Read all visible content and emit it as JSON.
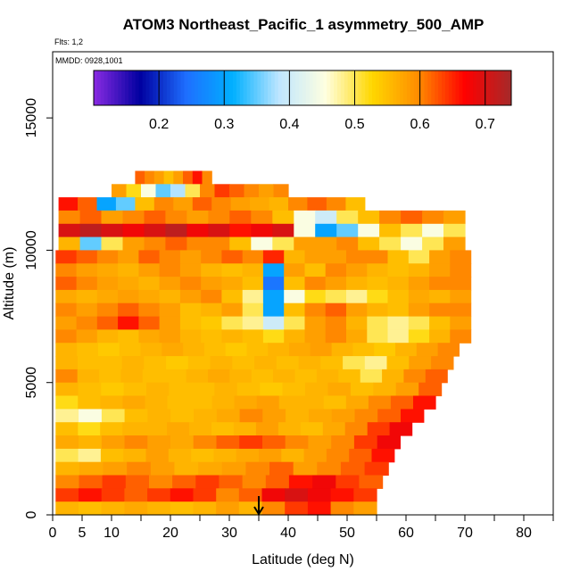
{
  "title": "ATOM3 Northeast_Pacific_1 asymmetry_500_AMP",
  "flights_label": "Flts: 1,2",
  "dates_label": "MMDD: 0928,1001",
  "chart_data": {
    "type": "heatmap",
    "title": "ATOM3 Northeast_Pacific_1 asymmetry_500_AMP",
    "xlabel": "Latitude (deg N)",
    "ylabel": "Altitude (m)",
    "xlim": [
      0,
      85
    ],
    "ylim": [
      0,
      17500
    ],
    "x_ticks": [
      0,
      5,
      10,
      20,
      30,
      40,
      50,
      60,
      70,
      80
    ],
    "x_minor_ticks": [
      15,
      25,
      35,
      45,
      55,
      65,
      75,
      85
    ],
    "y_ticks": [
      0,
      5000,
      10000,
      15000
    ],
    "colorbar": {
      "range": [
        0.1,
        0.74
      ],
      "ticks": [
        0.2,
        0.3,
        0.4,
        0.5,
        0.6,
        0.7
      ],
      "colors": [
        "#8a2be2",
        "#0000a0",
        "#1e6fff",
        "#00b0ff",
        "#bfe6ff",
        "#ffffe0",
        "#ffd700",
        "#ff8c00",
        "#ff0000",
        "#a52a2a"
      ]
    },
    "marker_latitude": 35,
    "grid": false,
    "rows": [
      {
        "alt": 12500,
        "lat_start": 14,
        "lat_end": 27,
        "values": [
          0.62,
          0.6,
          0.58,
          0.55,
          0.58,
          0.62,
          0.66,
          0.6
        ]
      },
      {
        "alt": 12000,
        "lat_start": 10,
        "lat_end": 40,
        "values": [
          0.58,
          0.52,
          0.45,
          0.35,
          0.38,
          0.5,
          0.6,
          0.64,
          0.62,
          0.6,
          0.58,
          0.6
        ]
      },
      {
        "alt": 11500,
        "lat_start": 1,
        "lat_end": 53,
        "values": [
          0.66,
          0.62,
          0.3,
          0.35,
          0.55,
          0.6,
          0.58,
          0.62,
          0.6,
          0.58,
          0.57,
          0.56,
          0.6,
          0.62,
          0.6,
          0.55
        ]
      },
      {
        "alt": 11000,
        "lat_start": 1,
        "lat_end": 70,
        "values": [
          0.6,
          0.62,
          0.58,
          0.6,
          0.62,
          0.6,
          0.58,
          0.6,
          0.62,
          0.6,
          0.55,
          0.45,
          0.4,
          0.5,
          0.55,
          0.6,
          0.62,
          0.6,
          0.58
        ]
      },
      {
        "alt": 10500,
        "lat_start": 1,
        "lat_end": 70,
        "values": [
          0.7,
          0.72,
          0.7,
          0.68,
          0.7,
          0.72,
          0.68,
          0.7,
          0.66,
          0.68,
          0.7,
          0.45,
          0.3,
          0.35,
          0.45,
          0.55,
          0.5,
          0.45,
          0.5
        ]
      },
      {
        "alt": 10000,
        "lat_start": 1,
        "lat_end": 70,
        "values": [
          0.56,
          0.35,
          0.5,
          0.58,
          0.6,
          0.62,
          0.6,
          0.6,
          0.55,
          0.45,
          0.5,
          0.58,
          0.58,
          0.6,
          0.55,
          0.5,
          0.45,
          0.5,
          0.58
        ]
      },
      {
        "alt": 9500,
        "lat_start": 0.5,
        "lat_end": 71,
        "values": [
          0.64,
          0.62,
          0.6,
          0.58,
          0.62,
          0.6,
          0.58,
          0.6,
          0.62,
          0.6,
          0.65,
          0.56,
          0.58,
          0.58,
          0.6,
          0.6,
          0.55,
          0.5,
          0.58,
          0.6
        ]
      },
      {
        "alt": 9000,
        "lat_start": 0.5,
        "lat_end": 71,
        "values": [
          0.6,
          0.58,
          0.57,
          0.56,
          0.58,
          0.6,
          0.58,
          0.56,
          0.55,
          0.56,
          0.3,
          0.58,
          0.55,
          0.6,
          0.58,
          0.56,
          0.55,
          0.56,
          0.58,
          0.6
        ]
      },
      {
        "alt": 8500,
        "lat_start": 0.5,
        "lat_end": 71,
        "values": [
          0.62,
          0.6,
          0.58,
          0.57,
          0.56,
          0.58,
          0.6,
          0.58,
          0.57,
          0.55,
          0.25,
          0.55,
          0.6,
          0.58,
          0.56,
          0.55,
          0.56,
          0.58,
          0.6,
          0.6
        ]
      },
      {
        "alt": 8000,
        "lat_start": 0.5,
        "lat_end": 71,
        "values": [
          0.57,
          0.56,
          0.57,
          0.58,
          0.57,
          0.56,
          0.58,
          0.6,
          0.55,
          0.48,
          0.3,
          0.45,
          0.52,
          0.5,
          0.48,
          0.52,
          0.55,
          0.57,
          0.56,
          0.58
        ]
      },
      {
        "alt": 7500,
        "lat_start": 0.5,
        "lat_end": 71,
        "values": [
          0.6,
          0.58,
          0.6,
          0.62,
          0.6,
          0.58,
          0.55,
          0.56,
          0.58,
          0.5,
          0.3,
          0.55,
          0.6,
          0.62,
          0.58,
          0.56,
          0.55,
          0.58,
          0.6,
          0.6
        ]
      },
      {
        "alt": 7000,
        "lat_start": 0.5,
        "lat_end": 71,
        "values": [
          0.58,
          0.6,
          0.62,
          0.66,
          0.62,
          0.58,
          0.55,
          0.54,
          0.5,
          0.48,
          0.4,
          0.5,
          0.58,
          0.6,
          0.56,
          0.5,
          0.48,
          0.5,
          0.55,
          0.58
        ]
      },
      {
        "alt": 6500,
        "lat_start": 0.5,
        "lat_end": 71,
        "values": [
          0.6,
          0.58,
          0.56,
          0.55,
          0.57,
          0.58,
          0.56,
          0.55,
          0.56,
          0.55,
          0.52,
          0.56,
          0.58,
          0.6,
          0.57,
          0.5,
          0.48,
          0.52,
          0.56,
          0.6
        ]
      },
      {
        "alt": 6000,
        "lat_start": 0.5,
        "lat_end": 69,
        "values": [
          0.56,
          0.55,
          0.54,
          0.55,
          0.56,
          0.57,
          0.56,
          0.55,
          0.54,
          0.55,
          0.56,
          0.57,
          0.58,
          0.56,
          0.55,
          0.54,
          0.56,
          0.58,
          0.6
        ]
      },
      {
        "alt": 5500,
        "lat_start": 0.5,
        "lat_end": 68,
        "values": [
          0.56,
          0.55,
          0.55,
          0.56,
          0.55,
          0.54,
          0.55,
          0.56,
          0.55,
          0.56,
          0.55,
          0.56,
          0.55,
          0.5,
          0.48,
          0.55,
          0.58,
          0.6
        ]
      },
      {
        "alt": 5000,
        "lat_start": 0.5,
        "lat_end": 67,
        "values": [
          0.6,
          0.56,
          0.55,
          0.56,
          0.55,
          0.55,
          0.56,
          0.57,
          0.56,
          0.55,
          0.56,
          0.55,
          0.56,
          0.55,
          0.5,
          0.56,
          0.6,
          0.62
        ]
      },
      {
        "alt": 4500,
        "lat_start": 0.5,
        "lat_end": 66,
        "values": [
          0.56,
          0.55,
          0.54,
          0.55,
          0.56,
          0.55,
          0.55,
          0.56,
          0.55,
          0.54,
          0.55,
          0.56,
          0.57,
          0.55,
          0.56,
          0.58,
          0.62
        ]
      },
      {
        "alt": 4000,
        "lat_start": 0.5,
        "lat_end": 65,
        "values": [
          0.52,
          0.55,
          0.56,
          0.57,
          0.56,
          0.55,
          0.55,
          0.56,
          0.57,
          0.58,
          0.56,
          0.56,
          0.55,
          0.57,
          0.6,
          0.62,
          0.66
        ]
      },
      {
        "alt": 3500,
        "lat_start": 0.5,
        "lat_end": 63,
        "values": [
          0.48,
          0.45,
          0.5,
          0.55,
          0.56,
          0.55,
          0.56,
          0.57,
          0.6,
          0.58,
          0.56,
          0.57,
          0.58,
          0.6,
          0.62,
          0.66
        ]
      },
      {
        "alt": 3000,
        "lat_start": 0.5,
        "lat_end": 61,
        "values": [
          0.55,
          0.52,
          0.55,
          0.56,
          0.56,
          0.57,
          0.56,
          0.55,
          0.56,
          0.58,
          0.56,
          0.55,
          0.57,
          0.6,
          0.64,
          0.68
        ]
      },
      {
        "alt": 2500,
        "lat_start": 0.5,
        "lat_end": 59,
        "values": [
          0.57,
          0.56,
          0.58,
          0.6,
          0.58,
          0.57,
          0.6,
          0.62,
          0.64,
          0.62,
          0.6,
          0.58,
          0.6,
          0.64,
          0.68
        ]
      },
      {
        "alt": 2000,
        "lat_start": 0.5,
        "lat_end": 58,
        "values": [
          0.5,
          0.48,
          0.55,
          0.56,
          0.58,
          0.56,
          0.55,
          0.56,
          0.57,
          0.58,
          0.56,
          0.58,
          0.6,
          0.62,
          0.66
        ]
      },
      {
        "alt": 1500,
        "lat_start": 0.5,
        "lat_end": 57,
        "values": [
          0.56,
          0.57,
          0.58,
          0.6,
          0.58,
          0.56,
          0.57,
          0.58,
          0.6,
          0.62,
          0.58,
          0.6,
          0.62,
          0.64
        ]
      },
      {
        "alt": 1000,
        "lat_start": 0.5,
        "lat_end": 56,
        "values": [
          0.6,
          0.62,
          0.64,
          0.62,
          0.6,
          0.62,
          0.64,
          0.62,
          0.6,
          0.62,
          0.66,
          0.68,
          0.64,
          0.62
        ]
      },
      {
        "alt": 500,
        "lat_start": 0.5,
        "lat_end": 55,
        "values": [
          0.64,
          0.66,
          0.64,
          0.62,
          0.64,
          0.66,
          0.64,
          0.6,
          0.62,
          0.68,
          0.7,
          0.68,
          0.66,
          0.64
        ]
      },
      {
        "alt": 0,
        "lat_start": 0.5,
        "lat_end": 55,
        "values": [
          0.56,
          0.55,
          0.56,
          0.57,
          0.56,
          0.55,
          0.56,
          0.58,
          0.56,
          0.6,
          0.64,
          0.66,
          0.6,
          0.58
        ]
      }
    ]
  }
}
